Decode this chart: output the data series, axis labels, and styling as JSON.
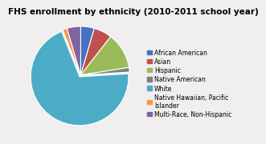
{
  "title": "FHS enrollment by ethnicity (2010-2011 school year)",
  "labels": [
    "African American",
    "Asian",
    "Hispanic",
    "Native American",
    "White",
    "Native Hawaiian, Pacific\nIslander",
    "Multi-Race, Non-Hispanic"
  ],
  "values": [
    4.5,
    6.0,
    12.0,
    1.5,
    70.0,
    1.5,
    4.5
  ],
  "colors": [
    "#4472C4",
    "#C0504D",
    "#9BBB59",
    "#7F7F7F",
    "#4BACC6",
    "#F79646",
    "#8064A2"
  ],
  "explode": [
    0,
    0,
    0,
    0,
    0.04,
    0,
    0
  ],
  "background_color": "#f0eeee",
  "title_fontsize": 7.5,
  "legend_fontsize": 5.5
}
